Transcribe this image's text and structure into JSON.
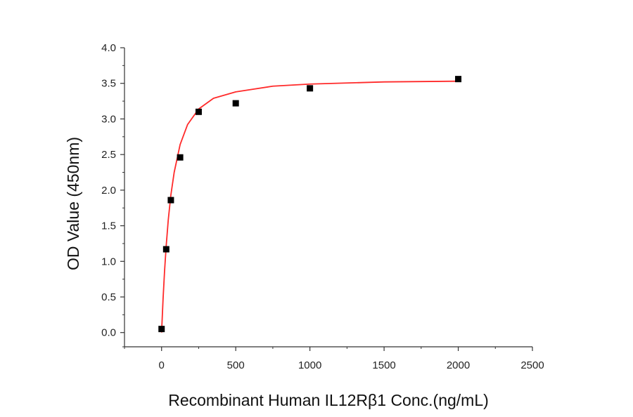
{
  "chart_data": {
    "type": "scatter",
    "title": "",
    "xlabel": "Recombinant Human IL12Rβ1 Conc.(ng/mL)",
    "ylabel": "OD Value (450nm)",
    "xlim": [
      -250,
      2500
    ],
    "ylim": [
      -0.2,
      4.0
    ],
    "xticks": [
      0,
      500,
      1000,
      1500,
      2000,
      2500
    ],
    "xtick_labels": [
      "0",
      "500",
      "1000",
      "1500",
      "2000",
      "2500"
    ],
    "yticks": [
      0.0,
      0.5,
      1.0,
      1.5,
      2.0,
      2.5,
      3.0,
      3.5,
      4.0
    ],
    "ytick_labels": [
      "0.0",
      "0.5",
      "1.0",
      "1.5",
      "2.0",
      "2.5",
      "3.0",
      "3.5",
      "4.0"
    ],
    "grid": false,
    "series": [
      {
        "type": "scatter",
        "marker": "square",
        "color": "#000000",
        "x": [
          0,
          31.25,
          62.5,
          125,
          250,
          500,
          1000,
          2000
        ],
        "y": [
          0.05,
          1.17,
          1.86,
          2.46,
          3.1,
          3.22,
          3.43,
          3.56
        ]
      },
      {
        "type": "line",
        "fit": "hyperbolic",
        "color": "#ff2a2a",
        "x": [
          0,
          10,
          20,
          31.25,
          45,
          62.5,
          85,
          125,
          175,
          250,
          350,
          500,
          750,
          1000,
          1500,
          2000
        ],
        "y": [
          0.0,
          0.47,
          0.86,
          1.22,
          1.58,
          1.93,
          2.25,
          2.64,
          2.92,
          3.14,
          3.29,
          3.38,
          3.46,
          3.49,
          3.52,
          3.53
        ]
      }
    ]
  }
}
